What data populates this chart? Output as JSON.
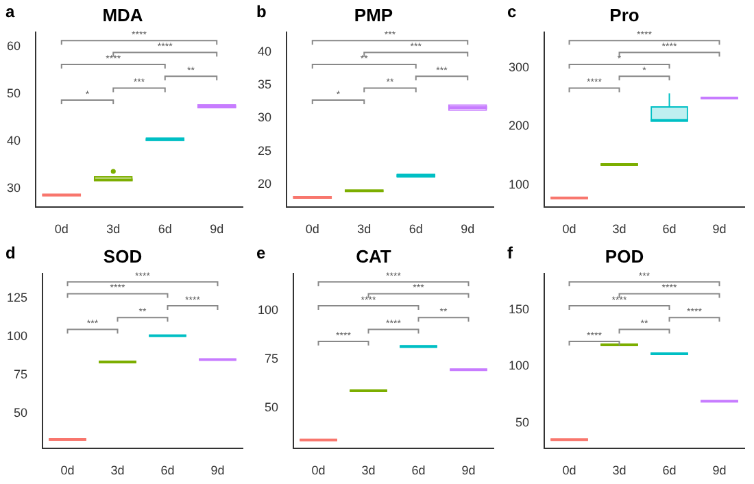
{
  "chart_data": [
    {
      "type": "box",
      "title": "MDA",
      "categories": [
        "0d",
        "3d",
        "6d",
        "9d"
      ],
      "colors": [
        "#f8766d",
        "#7cae00",
        "#00bfc4",
        "#c77cff"
      ],
      "ylim": [
        26,
        63
      ],
      "yticks": [
        30,
        40,
        50,
        60
      ],
      "boxes": [
        {
          "low": 28.3,
          "q1": 28.3,
          "median": 28.6,
          "q3": 28.9,
          "high": 28.9
        },
        {
          "low": 31.6,
          "q1": 31.6,
          "median": 31.8,
          "q3": 32.6,
          "high": 32.6,
          "outliers": [
            33.6
          ]
        },
        {
          "low": 40,
          "q1": 40,
          "median": 40.3,
          "q3": 40.8,
          "high": 40.8
        },
        {
          "low": 46.9,
          "q1": 46.9,
          "median": 47.3,
          "q3": 47.8,
          "high": 47.8
        }
      ],
      "annotations": [
        "a",
        "*",
        "***",
        "**",
        "****",
        "****",
        "****"
      ]
    },
    {
      "type": "box",
      "title": "PMP",
      "categories": [
        "0d",
        "3d",
        "6d",
        "9d"
      ],
      "colors": [
        "#f8766d",
        "#7cae00",
        "#00bfc4",
        "#c77cff"
      ],
      "ylim": [
        16.5,
        43
      ],
      "yticks": [
        20,
        25,
        30,
        35,
        40
      ],
      "boxes": [
        {
          "low": 17.9,
          "q1": 17.9,
          "median": 18,
          "q3": 18.2,
          "high": 18.2
        },
        {
          "low": 18.8,
          "q1": 18.8,
          "median": 19,
          "q3": 19.1,
          "high": 19.1
        },
        {
          "low": 21,
          "q1": 21,
          "median": 21.3,
          "q3": 21.6,
          "high": 21.6
        },
        {
          "low": 31.1,
          "q1": 31.1,
          "median": 31.6,
          "q3": 32.1,
          "high": 32.1
        }
      ],
      "annotations": [
        "b",
        "*",
        "**",
        "***",
        "**",
        "***",
        "***"
      ]
    },
    {
      "type": "box",
      "title": "Pro",
      "categories": [
        "0d",
        "3d",
        "6d",
        "9d"
      ],
      "colors": [
        "#f8766d",
        "#7cae00",
        "#00bfc4",
        "#c77cff"
      ],
      "ylim": [
        62,
        360
      ],
      "yticks": [
        100,
        200,
        300
      ],
      "boxes": [
        {
          "low": 77,
          "q1": 77,
          "median": 78,
          "q3": 79,
          "high": 79
        },
        {
          "low": 134,
          "q1": 134,
          "median": 135,
          "q3": 136,
          "high": 136
        },
        {
          "low": 209,
          "q1": 209,
          "median": 210,
          "q3": 234,
          "high": 256
        },
        {
          "low": 247,
          "q1": 247,
          "median": 248,
          "q3": 249,
          "high": 249
        }
      ],
      "annotations": [
        "c",
        "****",
        "*",
        "*",
        "****",
        "****"
      ]
    },
    {
      "type": "box",
      "title": "SOD",
      "categories": [
        "0d",
        "3d",
        "6d",
        "9d"
      ],
      "colors": [
        "#f8766d",
        "#7cae00",
        "#00bfc4",
        "#c77cff"
      ],
      "ylim": [
        27,
        141
      ],
      "yticks": [
        50,
        75,
        100,
        125
      ],
      "boxes": [
        {
          "low": 32.5,
          "q1": 32.5,
          "median": 33,
          "q3": 33.5,
          "high": 33.5
        },
        {
          "low": 82.5,
          "q1": 82.5,
          "median": 83.5,
          "q3": 84.5,
          "high": 84.5
        },
        {
          "low": 100.2,
          "q1": 100.2,
          "median": 100.6,
          "q3": 101,
          "high": 101
        },
        {
          "low": 84.8,
          "q1": 84.8,
          "median": 85,
          "q3": 85.4,
          "high": 85.4
        }
      ],
      "annotations": [
        "d",
        "***",
        "**",
        "****",
        "****",
        "****"
      ]
    },
    {
      "type": "box",
      "title": "CAT",
      "categories": [
        "0d",
        "3d",
        "6d",
        "9d"
      ],
      "colors": [
        "#f8766d",
        "#7cae00",
        "#00bfc4",
        "#c77cff"
      ],
      "ylim": [
        29,
        119
      ],
      "yticks": [
        50,
        75,
        100
      ],
      "boxes": [
        {
          "low": 33,
          "q1": 33,
          "median": 33.5,
          "q3": 34,
          "high": 34
        },
        {
          "low": 58.3,
          "q1": 58.3,
          "median": 58.8,
          "q3": 59.2,
          "high": 59.2
        },
        {
          "low": 80.8,
          "q1": 80.8,
          "median": 81.5,
          "q3": 82.3,
          "high": 82.3
        },
        {
          "low": 69.3,
          "q1": 69.3,
          "median": 69.6,
          "q3": 69.9,
          "high": 69.9
        }
      ],
      "annotations": [
        "e",
        "****",
        "****",
        "**",
        "****",
        "***",
        "****"
      ]
    },
    {
      "type": "box",
      "title": "POD",
      "categories": [
        "0d",
        "3d",
        "6d",
        "9d"
      ],
      "colors": [
        "#f8766d",
        "#7cae00",
        "#00bfc4",
        "#c77cff"
      ],
      "ylim": [
        27,
        182
      ],
      "yticks": [
        50,
        100,
        150
      ],
      "boxes": [
        {
          "low": 34.5,
          "q1": 34.5,
          "median": 35,
          "q3": 35.5,
          "high": 35.5
        },
        {
          "low": 118,
          "q1": 118,
          "median": 119,
          "q3": 120,
          "high": 120
        },
        {
          "low": 110,
          "q1": 110,
          "median": 111,
          "q3": 112,
          "high": 112
        },
        {
          "low": 68,
          "q1": 68,
          "median": 69,
          "q3": 70,
          "high": 70
        }
      ],
      "annotations": [
        "f",
        "****",
        "**",
        "****",
        "****",
        "****",
        "***"
      ]
    }
  ]
}
